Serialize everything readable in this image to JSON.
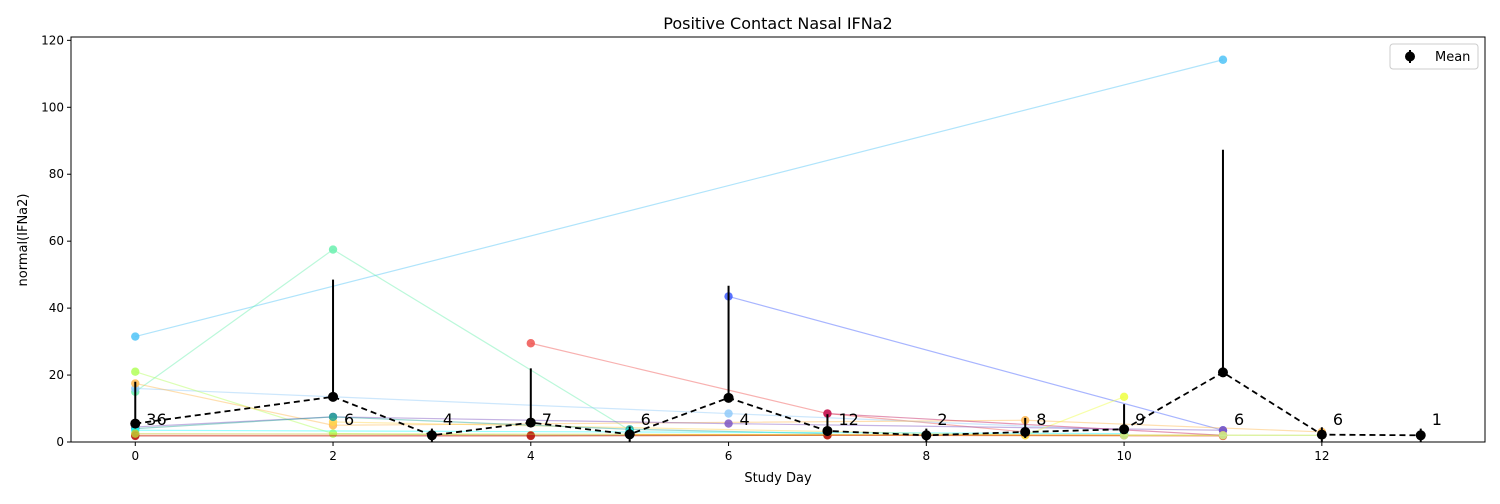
{
  "chart_data": {
    "type": "line",
    "title": "Positive Contact Nasal IFNa2",
    "xlabel": "Study Day",
    "ylabel": "normal(IFNa2)",
    "xlim": [
      -0.65,
      13.65
    ],
    "ylim": [
      0,
      121
    ],
    "x_ticks": [
      0,
      2,
      4,
      6,
      8,
      10,
      12
    ],
    "y_ticks": [
      0,
      20,
      40,
      60,
      80,
      100,
      120
    ],
    "legend": {
      "position": "top-right",
      "entries": [
        {
          "label": "Mean",
          "marker": "filled-circle-errorbar",
          "color": "#000000"
        }
      ]
    },
    "mean_series": {
      "name": "Mean",
      "color": "#000000",
      "style": "dashed",
      "points": [
        {
          "x": 0,
          "y": 5.5,
          "err_low": 0,
          "err_high": 12.5,
          "n": "36"
        },
        {
          "x": 2,
          "y": 13.5,
          "err_low": 0,
          "err_high": 35.0,
          "n": "6"
        },
        {
          "x": 3,
          "y": 2.0,
          "err_low": 2.0,
          "err_high": 2.0,
          "n": "4"
        },
        {
          "x": 4,
          "y": 5.8,
          "err_low": 0,
          "err_high": 16.2,
          "n": "7"
        },
        {
          "x": 5,
          "y": 2.3,
          "err_low": 2.3,
          "err_high": 2.3,
          "n": "6"
        },
        {
          "x": 6,
          "y": 13.2,
          "err_low": 0,
          "err_high": 33.5,
          "n": "4"
        },
        {
          "x": 7,
          "y": 3.3,
          "err_low": 1.5,
          "err_high": 5.0,
          "n": "12"
        },
        {
          "x": 8,
          "y": 2.0,
          "err_low": 2.0,
          "err_high": 2.0,
          "n": "2"
        },
        {
          "x": 9,
          "y": 3.0,
          "err_low": 1.8,
          "err_high": 4.2,
          "n": "8"
        },
        {
          "x": 10,
          "y": 3.8,
          "err_low": 0,
          "err_high": 7.5,
          "n": "9"
        },
        {
          "x": 11,
          "y": 20.8,
          "err_low": 0,
          "err_high": 66.5,
          "n": "6"
        },
        {
          "x": 12,
          "y": 2.2,
          "err_low": 2.2,
          "err_high": 2.2,
          "n": "6"
        },
        {
          "x": 13,
          "y": 2.0,
          "err_low": 2.0,
          "err_high": 2.0,
          "n": "1"
        }
      ]
    },
    "subject_series": [
      {
        "color": "#4fc3f7",
        "x": [
          0,
          11
        ],
        "y": [
          31.5,
          114.2
        ]
      },
      {
        "color": "#69f0ae",
        "x": [
          0,
          2,
          5
        ],
        "y": [
          15.0,
          57.5,
          3.5
        ]
      },
      {
        "color": "#3d5afe",
        "x": [
          6,
          11
        ],
        "y": [
          43.5,
          3.5
        ]
      },
      {
        "color": "#ef5350",
        "x": [
          4,
          7,
          9
        ],
        "y": [
          29.5,
          8.5,
          3.0
        ]
      },
      {
        "color": "#90caf9",
        "x": [
          0,
          6,
          10
        ],
        "y": [
          16.0,
          8.5,
          3.5
        ]
      },
      {
        "color": "#b2ff59",
        "x": [
          0,
          2,
          4,
          7
        ],
        "y": [
          21.0,
          2.5,
          2.0,
          2.0
        ]
      },
      {
        "color": "#ffb74d",
        "x": [
          0,
          2,
          9,
          12
        ],
        "y": [
          17.5,
          5.0,
          6.5,
          3.0
        ]
      },
      {
        "color": "#7e57c2",
        "x": [
          0,
          2,
          6,
          11
        ],
        "y": [
          4.5,
          7.5,
          5.5,
          3.5
        ]
      },
      {
        "color": "#eeff41",
        "x": [
          9,
          10
        ],
        "y": [
          2.0,
          13.5
        ]
      },
      {
        "color": "#ffd54f",
        "x": [
          2,
          9
        ],
        "y": [
          6.0,
          2.0
        ]
      },
      {
        "color": "#26a69a",
        "x": [
          0,
          2,
          5,
          7
        ],
        "y": [
          4.0,
          7.5,
          3.8,
          2.5
        ]
      },
      {
        "color": "#18ffff",
        "x": [
          0,
          5,
          10
        ],
        "y": [
          3.5,
          3.0,
          2.5
        ]
      },
      {
        "color": "#e64a19",
        "x": [
          0,
          4,
          7,
          11
        ],
        "y": [
          2.0,
          2.0,
          2.0,
          1.8
        ]
      },
      {
        "color": "#b71c1c",
        "x": [
          0,
          4,
          7,
          10
        ],
        "y": [
          1.8,
          1.8,
          2.0,
          2.0
        ]
      },
      {
        "color": "#c0ca33",
        "x": [
          0,
          12
        ],
        "y": [
          2.5,
          2.0
        ]
      },
      {
        "color": "#ff9800",
        "x": [
          5,
          11
        ],
        "y": [
          2.2,
          2.0
        ]
      },
      {
        "color": "#c2185b",
        "x": [
          7,
          11
        ],
        "y": [
          8.5,
          2.0
        ]
      },
      {
        "color": "#ccff90",
        "x": [
          10,
          11,
          12
        ],
        "y": [
          2.0,
          2.0,
          2.0
        ]
      }
    ]
  }
}
